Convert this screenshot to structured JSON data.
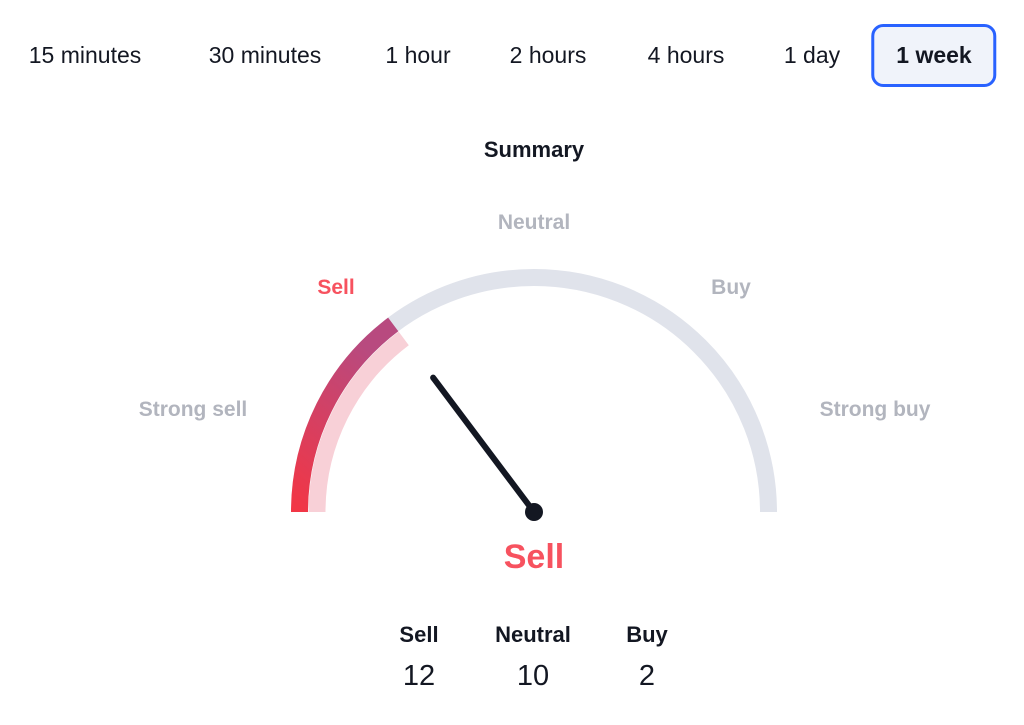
{
  "tabs": [
    {
      "label": "15 minutes",
      "active": false
    },
    {
      "label": "30 minutes",
      "active": false
    },
    {
      "label": "1 hour",
      "active": false
    },
    {
      "label": "2 hours",
      "active": false
    },
    {
      "label": "4 hours",
      "active": false
    },
    {
      "label": "1 day",
      "active": false
    },
    {
      "label": "1 week",
      "active": true
    }
  ],
  "summary": {
    "title": "Summary",
    "gauge_labels": {
      "strong_sell": "Strong sell",
      "sell": "Sell",
      "neutral": "Neutral",
      "buy": "Buy",
      "strong_buy": "Strong buy"
    },
    "needle_value": -0.41,
    "verdict": "Sell",
    "counts": [
      {
        "label": "Sell",
        "value": "12"
      },
      {
        "label": "Neutral",
        "value": "10"
      },
      {
        "label": "Buy",
        "value": "2"
      }
    ]
  },
  "colors": {
    "sell": "#f7525f",
    "sell_gradient_start": "#f23645",
    "sell_gradient_end": "#b84a7f",
    "sell_light": "#f8d0d7",
    "track": "#e0e3eb",
    "label_muted": "#b2b5be",
    "accent": "#2962ff",
    "needle": "#131722"
  }
}
